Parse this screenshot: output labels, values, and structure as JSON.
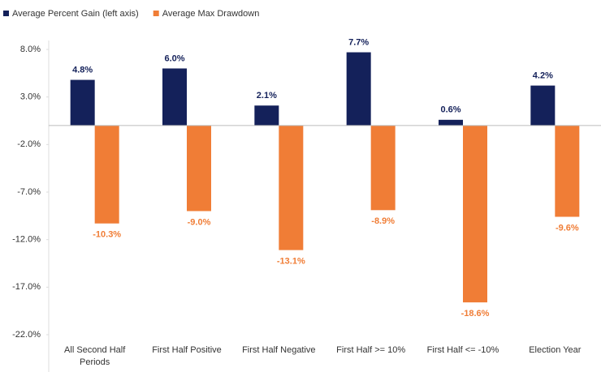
{
  "chart_data": {
    "type": "bar",
    "categories": [
      "All Second Half Periods",
      "First Half Positive",
      "First Half Negative",
      "First Half >= 10%",
      "First Half <= -10%",
      "Election Year"
    ],
    "series": [
      {
        "name": "Average Percent Gain (left axis)",
        "color": "#14215a",
        "values": [
          4.8,
          6.0,
          2.1,
          7.7,
          0.6,
          4.2
        ],
        "value_labels": [
          "4.8%",
          "6.0%",
          "2.1%",
          "7.7%",
          "0.6%",
          "4.2%"
        ]
      },
      {
        "name": "Average Max Drawdown",
        "color": "#f07d36",
        "values": [
          -10.3,
          -9.0,
          -13.1,
          -8.9,
          -18.6,
          -9.6
        ],
        "value_labels": [
          "-10.3%",
          "-9.0%",
          "-13.1%",
          "-8.9%",
          "-18.6%",
          "-9.6%"
        ]
      }
    ],
    "ylim": [
      -22,
      8
    ],
    "yticks": [
      {
        "value": 8,
        "label": "8.0%"
      },
      {
        "value": 3,
        "label": "3.0%"
      },
      {
        "value": -2,
        "label": "-2.0%"
      },
      {
        "value": -7,
        "label": "-7.0%"
      },
      {
        "value": -12,
        "label": "-12.0%"
      },
      {
        "value": -17,
        "label": "-17.0%"
      },
      {
        "value": -22,
        "label": "-22.0%"
      }
    ],
    "legend": "top-left"
  }
}
